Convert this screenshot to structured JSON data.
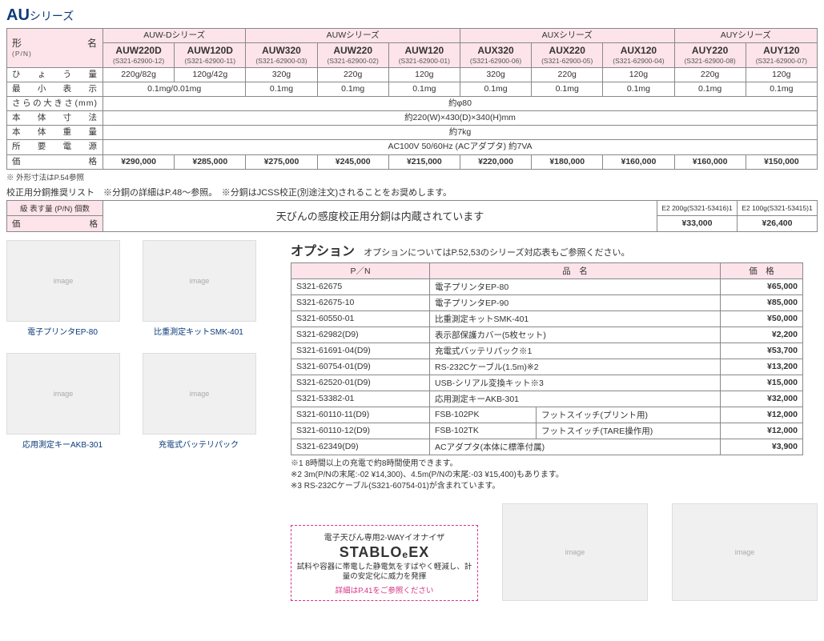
{
  "title_main": "AU",
  "title_sub": "シリーズ",
  "spec_table": {
    "row_labels": [
      "形　　　　名",
      "ひ ょ う 量",
      "最 小 表 示",
      "さらの大きさ(mm)",
      "本 体 寸 法",
      "本 体 重 量",
      "所 要 電 源",
      "価　　　　格"
    ],
    "pn_label": "(P/N)",
    "series": [
      "AUW-Dシリーズ",
      "AUWシリーズ",
      "AUXシリーズ",
      "AUYシリーズ"
    ],
    "series_span": [
      2,
      3,
      3,
      2
    ],
    "models": [
      {
        "m": "AUW220D",
        "pn": "(S321-62900-12)",
        "cap": "220g/82g",
        "price": "¥290,000"
      },
      {
        "m": "AUW120D",
        "pn": "(S321-62900-11)",
        "cap": "120g/42g",
        "price": "¥285,000"
      },
      {
        "m": "AUW320",
        "pn": "(S321-62900-03)",
        "cap": "320g",
        "price": "¥275,000"
      },
      {
        "m": "AUW220",
        "pn": "(S321-62900-02)",
        "cap": "220g",
        "price": "¥245,000"
      },
      {
        "m": "AUW120",
        "pn": "(S321-62900-01)",
        "cap": "120g",
        "price": "¥215,000"
      },
      {
        "m": "AUX320",
        "pn": "(S321-62900-06)",
        "cap": "320g",
        "price": "¥220,000"
      },
      {
        "m": "AUX220",
        "pn": "(S321-62900-05)",
        "cap": "220g",
        "price": "¥180,000"
      },
      {
        "m": "AUX120",
        "pn": "(S321-62900-04)",
        "cap": "120g",
        "price": "¥160,000"
      },
      {
        "m": "AUY220",
        "pn": "(S321-62900-08)",
        "cap": "220g",
        "price": "¥160,000"
      },
      {
        "m": "AUY120",
        "pn": "(S321-62900-07)",
        "cap": "120g",
        "price": "¥150,000"
      }
    ],
    "min_disp_d": "0.1mg/0.01mg",
    "min_disp_rest": "0.1mg",
    "pan": "約φ80",
    "body_dim": "約220(W)×430(D)×340(H)mm",
    "body_wt": "約7kg",
    "power": "AC100V 50/60Hz (ACアダプタ) 約7VA"
  },
  "outline_note": "※ 外形寸法はP.54参照",
  "weight_hdr": "校正用分銅推奨リスト　※分銅の詳細はP.48～参照。　※分銅はJCSS校正(別途注文)されることをお奨めします。",
  "weight_table": {
    "row1": "級  表す量  (P/N)  個数",
    "row2": "価　　　　格",
    "msg": "天びんの感度校正用分銅は内蔵されています",
    "e2a": "E2 200g(S321-53416)1",
    "e2b": "E2 100g(S321-53415)1",
    "pa": "¥33,000",
    "pb": "¥26,400"
  },
  "products": [
    {
      "label": "電子プリンタEP-80"
    },
    {
      "label": "比重測定キットSMK-401"
    },
    {
      "label": "応用測定キーAKB-301"
    },
    {
      "label": "充電式バッテリパック"
    }
  ],
  "option_title": "オプション",
  "option_sub": "オプションについてはP.52,53のシリーズ対応表もご参照ください。",
  "option_headers": [
    "P／N",
    "品　名",
    "価　格"
  ],
  "options": [
    {
      "pn": "S321-62675",
      "name": "電子プリンタEP-80",
      "name2": "",
      "pr": "¥65,000"
    },
    {
      "pn": "S321-62675-10",
      "name": "電子プリンタEP-90",
      "name2": "",
      "pr": "¥85,000"
    },
    {
      "pn": "S321-60550-01",
      "name": "比重測定キットSMK-401",
      "name2": "",
      "pr": "¥50,000"
    },
    {
      "pn": "S321-62982(D9)",
      "name": "表示部保護カバー(5枚セット)",
      "name2": "",
      "pr": "¥2,200"
    },
    {
      "pn": "S321-61691-04(D9)",
      "name": "充電式バッテリパック※1",
      "name2": "",
      "pr": "¥53,700"
    },
    {
      "pn": "S321-60754-01(D9)",
      "name": "RS-232Cケーブル(1.5m)※2",
      "name2": "",
      "pr": "¥13,200"
    },
    {
      "pn": "S321-62520-01(D9)",
      "name": "USB-シリアル変換キット※3",
      "name2": "",
      "pr": "¥15,000"
    },
    {
      "pn": "S321-53382-01",
      "name": "応用測定キーAKB-301",
      "name2": "",
      "pr": "¥32,000"
    },
    {
      "pn": "S321-60110-11(D9)",
      "name": "FSB-102PK",
      "name2": "フットスイッチ(プリント用)",
      "pr": "¥12,000"
    },
    {
      "pn": "S321-60110-12(D9)",
      "name": "FSB-102TK",
      "name2": "フットスイッチ(TARE操作用)",
      "pr": "¥12,000"
    },
    {
      "pn": "S321-62349(D9)",
      "name": "ACアダプタ(本体に標準付属)",
      "name2": "",
      "pr": "¥3,900"
    }
  ],
  "opt_notes": [
    "※1  8時間以上の充電で約8時間使用できます。",
    "※2  3m(P/Nの末尾:-02  ¥14,300)、4.5m(P/Nの末尾:-03  ¥15,400)もあります。",
    "※3  RS-232Cケーブル(S321-60754-01)が含まれています。"
  ],
  "stablo": {
    "title": "電子天びん専用2-WAYイオナイザ",
    "logo": "STABLO‎ₑEX",
    "desc": "試料や容器に帯電した静電気をすばやく軽減し、計量の安定化に威力を発揮",
    "link": "詳細はP.41をご参照ください"
  }
}
